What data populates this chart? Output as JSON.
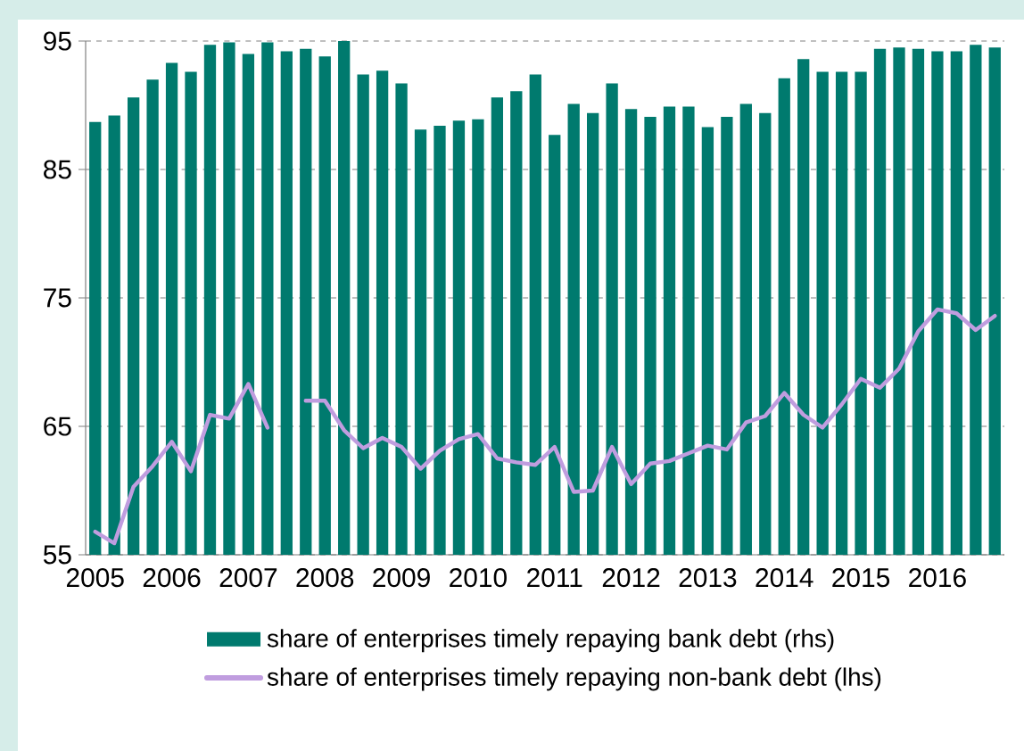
{
  "chart_data": {
    "type": "bar",
    "categories": [
      "2005",
      null,
      null,
      null,
      "2006",
      null,
      null,
      null,
      "2007",
      null,
      null,
      null,
      "2008",
      null,
      null,
      null,
      "2009",
      null,
      null,
      null,
      "2010",
      null,
      null,
      null,
      "2011",
      null,
      null,
      null,
      "2012",
      null,
      null,
      null,
      "2013",
      null,
      null,
      null,
      "2014",
      null,
      null,
      null,
      "2015",
      null,
      null,
      null,
      "2016",
      null,
      null,
      null
    ],
    "series": [
      {
        "name": "share of enterprises timely repaying bank debt (rhs)",
        "color": "#007a6e",
        "values": [
          88.7,
          89.2,
          90.6,
          92.0,
          93.3,
          92.6,
          94.7,
          94.9,
          94.0,
          94.9,
          94.2,
          94.4,
          93.8,
          95.0,
          92.4,
          92.7,
          91.7,
          88.1,
          88.4,
          88.8,
          88.9,
          90.6,
          91.1,
          92.4,
          87.7,
          90.1,
          89.4,
          91.7,
          89.7,
          89.1,
          89.9,
          89.9,
          88.3,
          89.1,
          90.1,
          89.4,
          92.1,
          93.6,
          92.6,
          92.6,
          92.6,
          94.4,
          94.5,
          94.4,
          94.2,
          94.2,
          94.7,
          94.5
        ]
      },
      {
        "name": "share of enterprises timely repaying non-bank debt (lhs)",
        "type": "line",
        "color": "#c09ddf",
        "values": [
          56.8,
          55.9,
          60.3,
          61.9,
          63.8,
          61.5,
          65.9,
          65.6,
          68.3,
          64.9,
          null,
          67.0,
          67.0,
          64.7,
          63.3,
          64.1,
          63.4,
          61.7,
          63.1,
          64.0,
          64.4,
          62.5,
          62.2,
          62.0,
          63.4,
          59.9,
          60.0,
          63.4,
          60.5,
          62.1,
          62.3,
          62.9,
          63.5,
          63.2,
          65.3,
          65.8,
          67.6,
          65.9,
          64.9,
          66.7,
          68.7,
          68.0,
          69.5,
          72.4,
          74.1,
          73.8,
          72.5,
          73.6
        ]
      }
    ],
    "ylim": [
      55,
      95
    ],
    "yticks": [
      55,
      65,
      75,
      85,
      95
    ],
    "grid": "y",
    "legend": "bottom"
  }
}
